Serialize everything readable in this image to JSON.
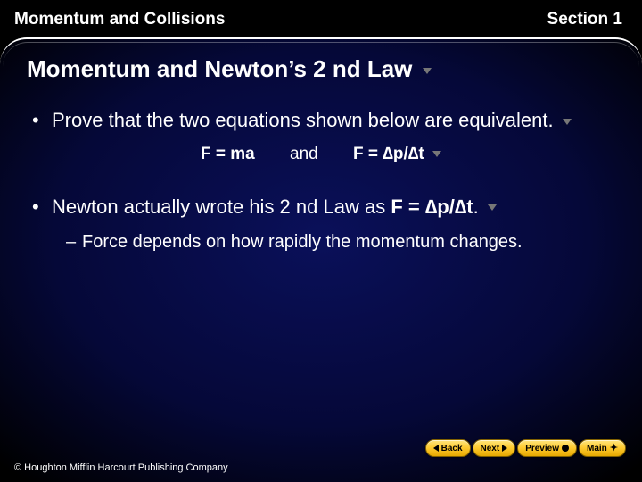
{
  "colors": {
    "background_outer": "#000000",
    "background_gradient_center": "#0a105a",
    "background_gradient_mid": "#050838",
    "text_primary": "#ffffff",
    "nav_button_top": "#ffe680",
    "nav_button_mid": "#ffcc33",
    "nav_button_bottom": "#e6a800",
    "nav_button_border": "#806000",
    "dropdown_arrow": "#777777"
  },
  "typography": {
    "header_fontsize": 19,
    "title_fontsize": 26,
    "bullet_fontsize": 22,
    "equation_fontsize": 19,
    "sub_bullet_fontsize": 20,
    "nav_fontsize": 10,
    "copyright_fontsize": 11,
    "font_family": "Arial"
  },
  "header": {
    "chapter": "Momentum and Collisions",
    "section": "Section 1"
  },
  "title": "Momentum and Newton’s 2 nd Law",
  "bullets": {
    "b1": "Prove that the two equations shown below are equivalent.",
    "eq1": "F = ma",
    "and": "and",
    "eq2": "F = ∆p/∆t",
    "b2_pre": "Newton actually wrote his 2 nd Law as ",
    "b2_bold": "F = ∆p/∆t",
    "b2_post": ".",
    "sub1": "Force depends on how rapidly the momentum changes."
  },
  "nav": {
    "back": "Back",
    "next": "Next",
    "preview": "Preview",
    "main": "Main"
  },
  "copyright": "© Houghton Mifflin Harcourt Publishing Company"
}
